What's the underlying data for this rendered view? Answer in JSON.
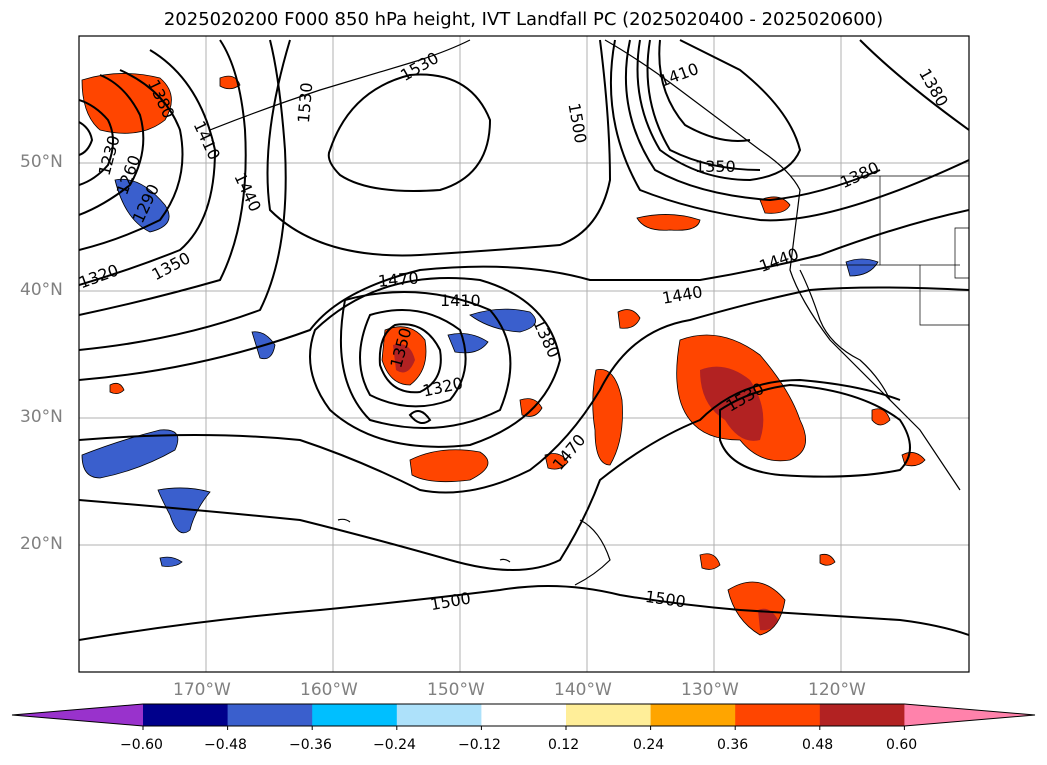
{
  "title": "2025020200 F000 850 hPa height, IVT Landfall PC (2025020400 - 2025020600)",
  "lat_labels": [
    "50°N",
    "40°N",
    "30°N",
    "20°N"
  ],
  "lon_labels": [
    "170°W",
    "160°W",
    "150°W",
    "140°W",
    "130°W",
    "120°W"
  ],
  "contour_labels": [
    "1380",
    "1410",
    "1440",
    "1230",
    "1260",
    "1290",
    "1320",
    "1350",
    "1530",
    "1500",
    "1470",
    "1410",
    "1350",
    "1320",
    "1380",
    "1440",
    "1440",
    "1380",
    "1350",
    "1470",
    "1500",
    "1500",
    "1530"
  ],
  "colorbar": {
    "ticks": [
      "−0.60",
      "−0.48",
      "−0.36",
      "−0.24",
      "−0.12",
      "0.12",
      "0.24",
      "0.36",
      "0.48",
      "0.60"
    ],
    "colors": [
      "#9932CC",
      "#00008B",
      "#3A5FCD",
      "#00BFFF",
      "#ADE1FA",
      "#FFFFFF",
      "#FFEE99",
      "#FFA500",
      "#FF4500",
      "#B22222",
      "#FF82AB"
    ]
  }
}
